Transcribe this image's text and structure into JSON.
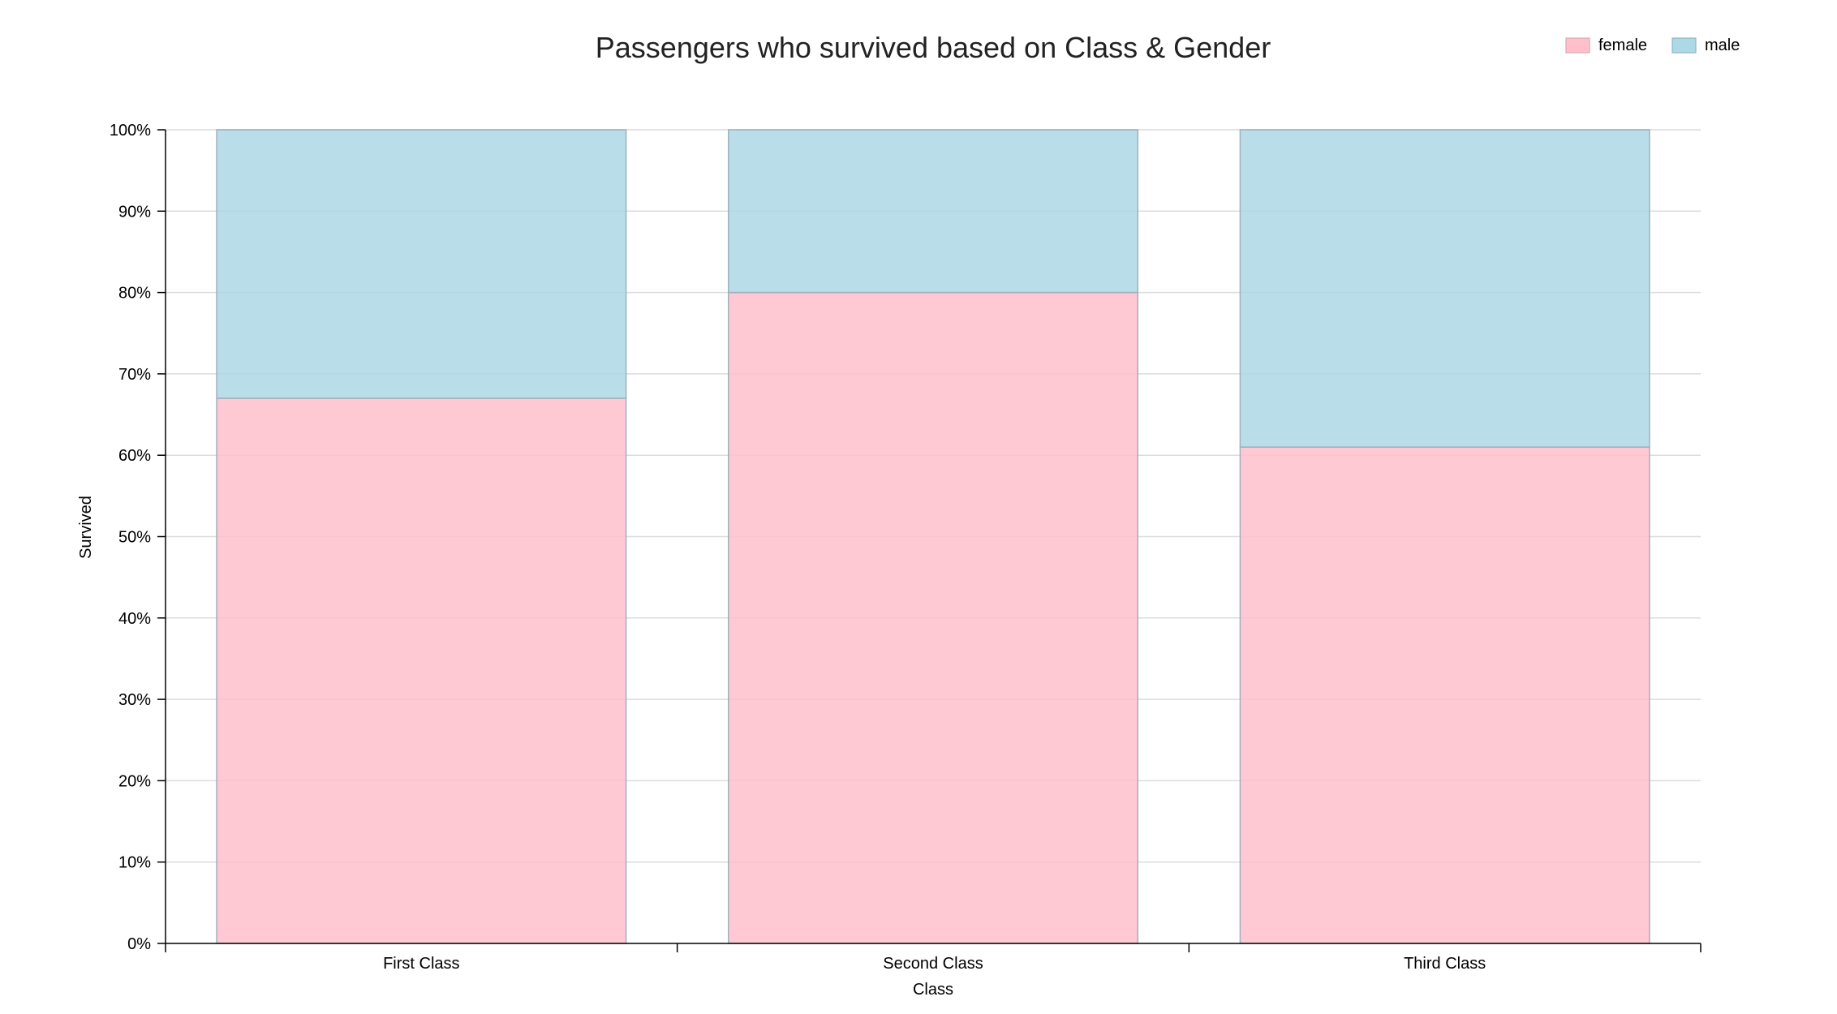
{
  "chart_data": {
    "type": "bar",
    "stacked": true,
    "title": "Passengers who survived based on Class & Gender",
    "xlabel": "Class",
    "ylabel": "Survived",
    "categories": [
      "First Class",
      "Second Class",
      "Third Class"
    ],
    "series": [
      {
        "name": "female",
        "color": "#ffc0cb",
        "values": [
          0.67,
          0.8,
          0.61
        ]
      },
      {
        "name": "male",
        "color": "#add8e6",
        "values": [
          0.33,
          0.2,
          0.39
        ]
      }
    ],
    "ylim": [
      0,
      1
    ],
    "yticks": [
      "0%",
      "10%",
      "20%",
      "30%",
      "40%",
      "50%",
      "60%",
      "70%",
      "80%",
      "90%",
      "100%"
    ],
    "grid": true,
    "legend_position": "top-right"
  }
}
